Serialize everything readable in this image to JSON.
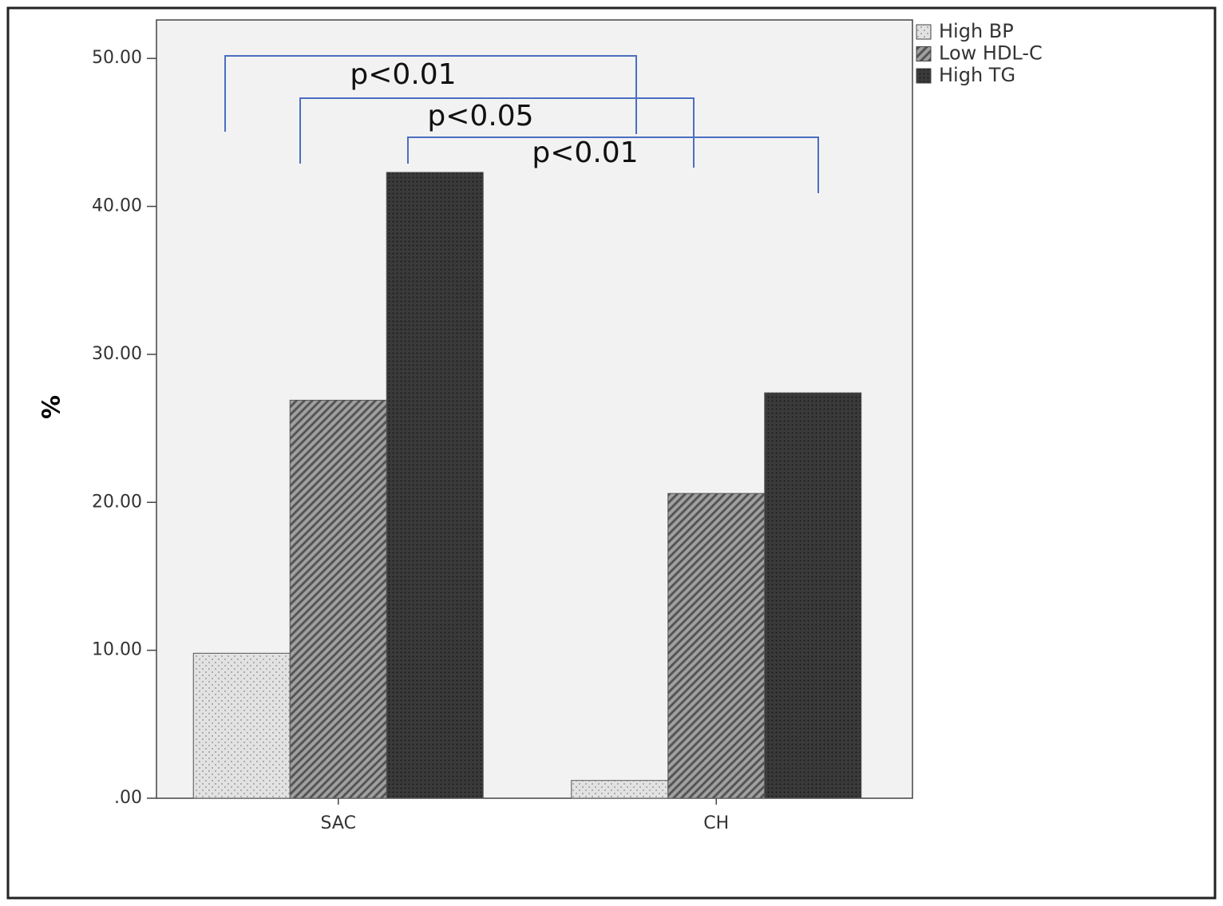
{
  "chart_data": {
    "type": "bar",
    "ylabel": "%",
    "categories": [
      "SAC",
      "CH"
    ],
    "series": [
      {
        "name": "High BP",
        "color": "#e2e2e2",
        "pattern": "dots",
        "values": [
          9.8,
          1.2
        ]
      },
      {
        "name": "Low HDL-C",
        "color": "#8a8a8a",
        "pattern": "diagonal",
        "values": [
          26.9,
          20.6
        ]
      },
      {
        "name": "High TG",
        "color": "#2e2e2e",
        "pattern": "crosshatch",
        "values": [
          42.3,
          27.4
        ]
      }
    ],
    "ylim": [
      0,
      52.6
    ],
    "yticks": [
      {
        "value": 0,
        "label": ".00"
      },
      {
        "value": 10,
        "label": "10.00"
      },
      {
        "value": 20,
        "label": "20.00"
      },
      {
        "value": 30,
        "label": "30.00"
      },
      {
        "value": 40,
        "label": "40.00"
      },
      {
        "value": 50,
        "label": "50.00"
      }
    ],
    "legend": "upper right",
    "annotations": [
      "p<0.01",
      "p<0.05",
      "p<0.01"
    ]
  }
}
